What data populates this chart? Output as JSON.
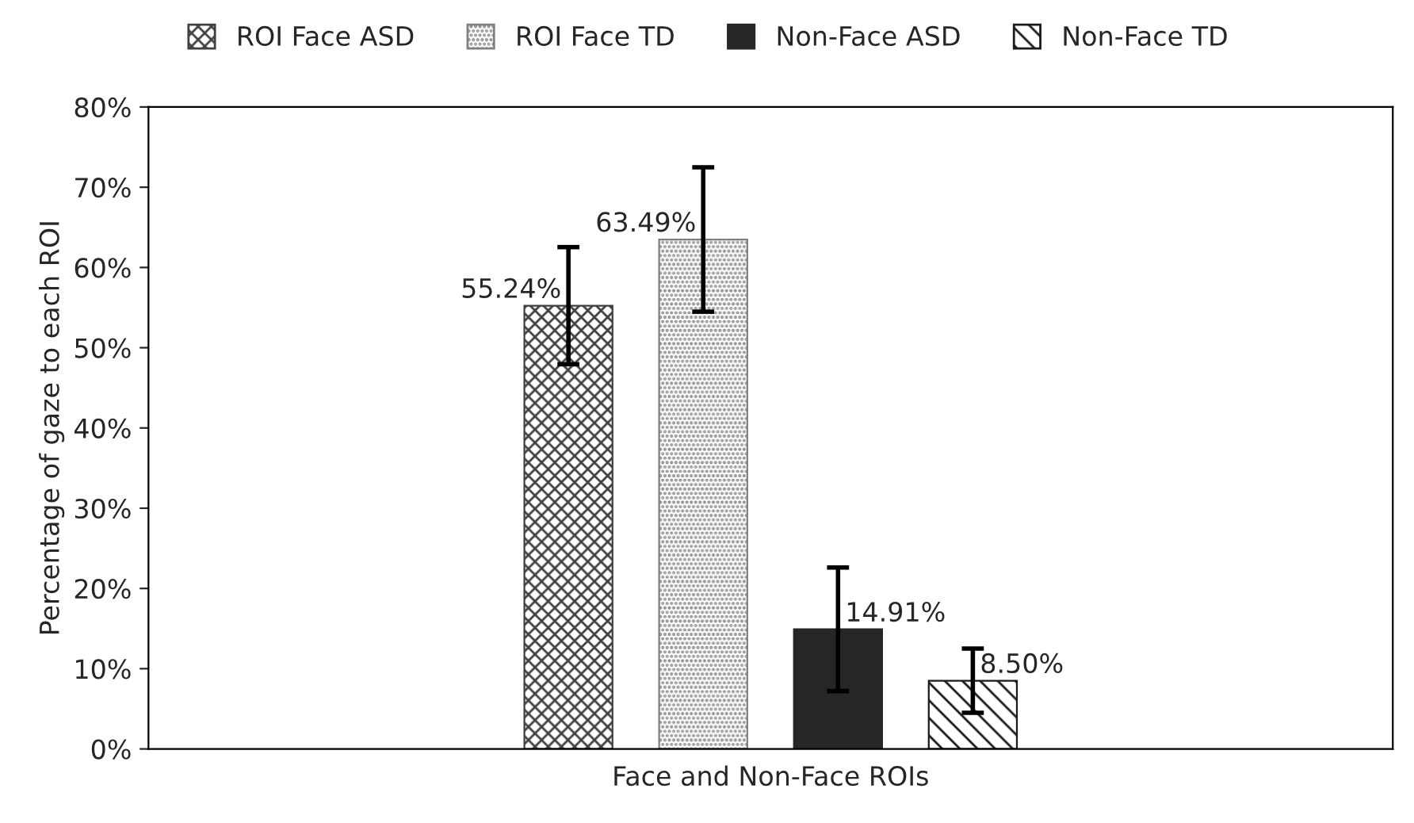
{
  "chart_data": {
    "type": "bar",
    "xlabel": "Face and Non-Face ROIs",
    "ylabel": "Percentage of gaze to each ROI",
    "categories": [
      null
    ],
    "series": [
      {
        "name": "ROI Face ASD",
        "color": "#404040",
        "values": [
          55.24
        ],
        "errors": [
          7.3
        ],
        "value_labels": [
          "55.24%"
        ]
      },
      {
        "name": "ROI Face TD",
        "color": "#808080",
        "values": [
          63.49
        ],
        "errors": [
          9.0
        ],
        "value_labels": [
          "63.49%"
        ]
      },
      {
        "name": "Non-Face ASD",
        "color": "#262626",
        "values": [
          14.91
        ],
        "errors": [
          7.7
        ],
        "value_labels": [
          "14.91%"
        ]
      },
      {
        "name": "Non-Face TD",
        "color": "#1a1a1a",
        "values": [
          8.5
        ],
        "errors": [
          4.0
        ],
        "value_labels": [
          "8.50%"
        ]
      }
    ],
    "ylim": [
      0,
      80
    ],
    "yticks": [
      {
        "value": 0,
        "label": "0%"
      },
      {
        "value": 10,
        "label": "10%"
      },
      {
        "value": 20,
        "label": "20%"
      },
      {
        "value": 30,
        "label": "30%"
      },
      {
        "value": 40,
        "label": "40%"
      },
      {
        "value": 50,
        "label": "50%"
      },
      {
        "value": 60,
        "label": "60%"
      },
      {
        "value": 70,
        "label": "70%"
      },
      {
        "value": 80,
        "label": "80%"
      }
    ],
    "grid": false,
    "legend": "top"
  }
}
